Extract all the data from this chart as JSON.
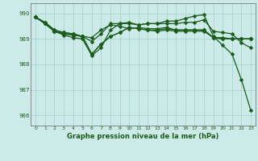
{
  "background_color": "#cceae7",
  "grid_color": "#aad4d0",
  "line_color": "#1a5c1a",
  "title": "Graphe pression niveau de la mer (hPa)",
  "xlim": [
    -0.5,
    23.5
  ],
  "ylim": [
    985.6,
    990.4
  ],
  "yticks": [
    986,
    987,
    988,
    989,
    990
  ],
  "xticks": [
    0,
    1,
    2,
    3,
    4,
    5,
    6,
    7,
    8,
    9,
    10,
    11,
    12,
    13,
    14,
    15,
    16,
    17,
    18,
    19,
    20,
    21,
    22,
    23
  ],
  "series": [
    [
      989.85,
      989.65,
      989.35,
      989.25,
      989.2,
      989.1,
      989.05,
      989.35,
      989.55,
      989.5,
      989.4,
      989.45,
      989.4,
      989.4,
      989.45,
      989.35,
      989.35,
      989.35,
      989.35,
      989.05,
      989.05,
      989.0,
      989.0,
      989.0
    ],
    [
      989.85,
      989.6,
      989.3,
      989.2,
      989.15,
      989.1,
      988.4,
      988.8,
      989.1,
      989.25,
      989.45,
      989.4,
      989.35,
      989.3,
      989.35,
      989.3,
      989.3,
      989.3,
      989.3,
      989.05,
      989.0,
      989.0,
      989.0,
      989.0
    ],
    [
      989.85,
      989.6,
      989.3,
      989.2,
      989.15,
      989.1,
      988.4,
      988.8,
      989.1,
      989.25,
      989.45,
      989.4,
      989.35,
      989.35,
      989.4,
      989.35,
      989.35,
      989.35,
      989.35,
      989.05,
      989.0,
      989.0,
      989.0,
      989.0
    ],
    [
      989.85,
      989.65,
      989.35,
      989.25,
      989.2,
      989.1,
      988.9,
      989.2,
      989.6,
      989.6,
      989.6,
      989.55,
      989.6,
      989.6,
      989.6,
      989.6,
      989.65,
      989.65,
      989.75,
      989.3,
      989.25,
      989.2,
      988.85,
      988.65
    ],
    [
      989.85,
      989.6,
      989.3,
      989.15,
      989.05,
      989.0,
      988.35,
      988.65,
      989.35,
      989.6,
      989.65,
      989.55,
      989.6,
      989.6,
      989.7,
      989.7,
      989.8,
      989.9,
      989.95,
      989.1,
      988.75,
      988.4,
      987.4,
      986.2
    ]
  ]
}
